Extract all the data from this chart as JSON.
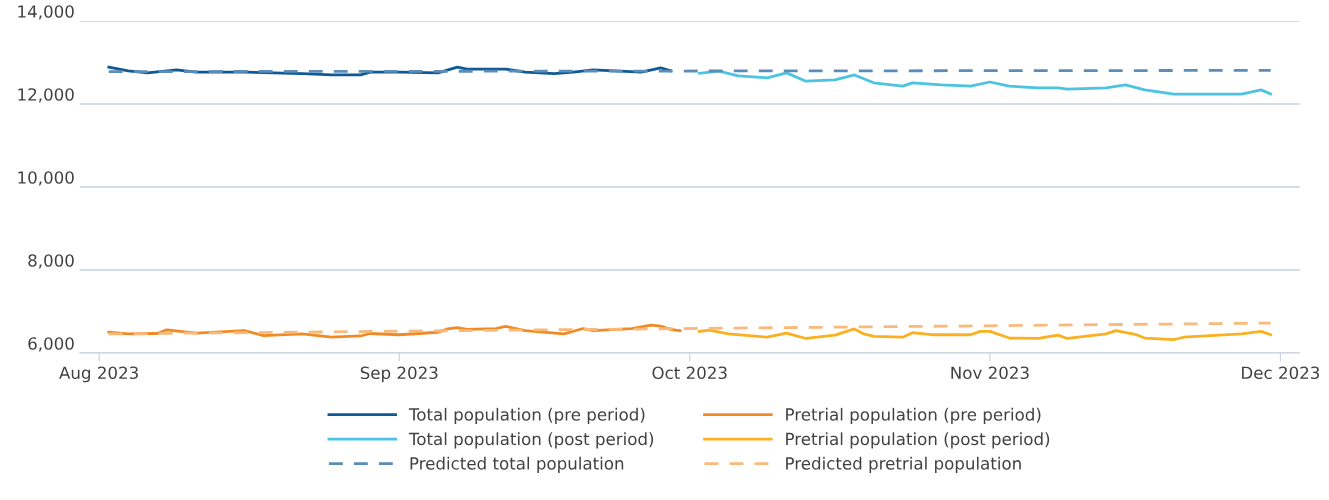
{
  "chart_data": {
    "type": "line",
    "xlim": [
      "2023-07-30",
      "2023-12-03"
    ],
    "xticks": [
      {
        "value": "2023-08-01",
        "label": "Aug 2023"
      },
      {
        "value": "2023-09-01",
        "label": "Sep 2023"
      },
      {
        "value": "2023-10-01",
        "label": "Oct 2023"
      },
      {
        "value": "2023-11-01",
        "label": "Nov 2023"
      },
      {
        "value": "2023-12-01",
        "label": "Dec 2023"
      }
    ],
    "ylim": [
      6000,
      14000
    ],
    "yticks": [
      {
        "value": 6000,
        "label": "6,000"
      },
      {
        "value": 8000,
        "label": "8,000"
      },
      {
        "value": 10000,
        "label": "10,000"
      },
      {
        "value": 12000,
        "label": "12,000"
      },
      {
        "value": 14000,
        "label": "14,000"
      }
    ],
    "grid": "y",
    "legend": "bottom",
    "marker": "none",
    "series": [
      {
        "name": "Total population (pre period)",
        "color": "#0d5a96",
        "line_style": "solid",
        "x": [
          "2023-08-02",
          "2023-08-04",
          "2023-08-06",
          "2023-08-09",
          "2023-08-11",
          "2023-08-16",
          "2023-08-19",
          "2023-08-22",
          "2023-08-25",
          "2023-08-28",
          "2023-08-29",
          "2023-09-01",
          "2023-09-05",
          "2023-09-07",
          "2023-09-08",
          "2023-09-12",
          "2023-09-14",
          "2023-09-17",
          "2023-09-19",
          "2023-09-21",
          "2023-09-26",
          "2023-09-28",
          "2023-09-29"
        ],
        "values": [
          12890,
          12800,
          12750,
          12820,
          12770,
          12770,
          12750,
          12730,
          12700,
          12700,
          12770,
          12770,
          12750,
          12890,
          12840,
          12840,
          12770,
          12730,
          12770,
          12820,
          12770,
          12870,
          12800
        ]
      },
      {
        "name": "Total population (post period)",
        "color": "#4cc3e0",
        "line_style": "solid",
        "x": [
          "2023-10-02",
          "2023-10-04",
          "2023-10-06",
          "2023-10-09",
          "2023-10-11",
          "2023-10-13",
          "2023-10-16",
          "2023-10-18",
          "2023-10-20",
          "2023-10-23",
          "2023-10-24",
          "2023-10-27",
          "2023-10-30",
          "2023-11-01",
          "2023-11-03",
          "2023-11-06",
          "2023-11-08",
          "2023-11-09",
          "2023-11-13",
          "2023-11-15",
          "2023-11-17",
          "2023-11-20",
          "2023-11-22",
          "2023-11-27",
          "2023-11-29",
          "2023-11-30"
        ],
        "values": [
          12740,
          12790,
          12680,
          12630,
          12750,
          12550,
          12580,
          12700,
          12510,
          12430,
          12510,
          12460,
          12430,
          12530,
          12430,
          12390,
          12390,
          12360,
          12390,
          12460,
          12340,
          12240,
          12240,
          12240,
          12340,
          12240
        ]
      },
      {
        "name": "Predicted total population",
        "color": "#5b8db8",
        "line_style": "dashed",
        "x": [
          "2023-08-02",
          "2023-11-30"
        ],
        "values": [
          12780,
          12810
        ]
      },
      {
        "name": "Pretrial population (pre period)",
        "color": "#f08a24",
        "line_style": "solid",
        "x": [
          "2023-08-02",
          "2023-08-04",
          "2023-08-07",
          "2023-08-08",
          "2023-08-11",
          "2023-08-16",
          "2023-08-18",
          "2023-08-22",
          "2023-08-25",
          "2023-08-28",
          "2023-08-29",
          "2023-09-01",
          "2023-09-05",
          "2023-09-06",
          "2023-09-07",
          "2023-09-08",
          "2023-09-11",
          "2023-09-12",
          "2023-09-14",
          "2023-09-18",
          "2023-09-20",
          "2023-09-21",
          "2023-09-25",
          "2023-09-27",
          "2023-09-28",
          "2023-09-29",
          "2023-09-30"
        ],
        "values": [
          6500,
          6460,
          6470,
          6560,
          6480,
          6540,
          6420,
          6460,
          6380,
          6410,
          6470,
          6440,
          6500,
          6580,
          6610,
          6570,
          6590,
          6640,
          6540,
          6460,
          6590,
          6540,
          6590,
          6670,
          6650,
          6570,
          6540
        ]
      },
      {
        "name": "Pretrial population (post period)",
        "color": "#fbb021",
        "line_style": "solid",
        "x": [
          "2023-10-02",
          "2023-10-03",
          "2023-10-05",
          "2023-10-09",
          "2023-10-11",
          "2023-10-13",
          "2023-10-16",
          "2023-10-18",
          "2023-10-19",
          "2023-10-20",
          "2023-10-23",
          "2023-10-24",
          "2023-10-26",
          "2023-10-30",
          "2023-10-31",
          "2023-11-01",
          "2023-11-03",
          "2023-11-06",
          "2023-11-08",
          "2023-11-09",
          "2023-11-13",
          "2023-11-14",
          "2023-11-16",
          "2023-11-17",
          "2023-11-20",
          "2023-11-21",
          "2023-11-27",
          "2023-11-29",
          "2023-11-30"
        ],
        "values": [
          6520,
          6550,
          6460,
          6380,
          6480,
          6350,
          6430,
          6580,
          6460,
          6400,
          6380,
          6490,
          6440,
          6440,
          6520,
          6520,
          6360,
          6350,
          6430,
          6350,
          6460,
          6540,
          6450,
          6360,
          6320,
          6380,
          6460,
          6520,
          6440
        ]
      },
      {
        "name": "Predicted pretrial population",
        "color": "#f9b97a",
        "line_style": "dashed",
        "x": [
          "2023-08-02",
          "2023-11-30"
        ],
        "values": [
          6460,
          6720
        ]
      }
    ]
  }
}
